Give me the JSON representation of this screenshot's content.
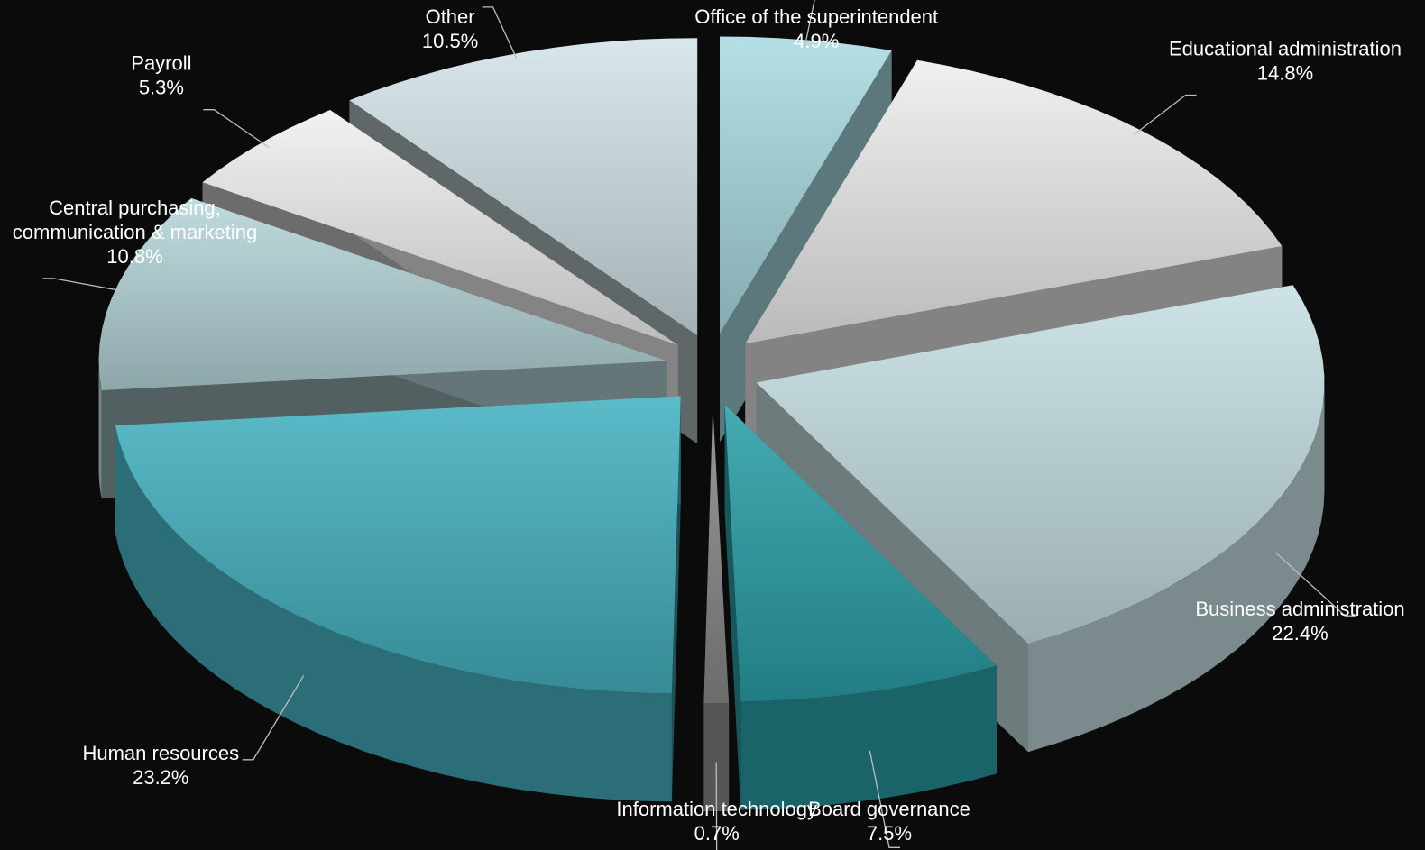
{
  "chart_data": {
    "type": "pie",
    "variant": "3d-exploded",
    "title": "",
    "unit": "%",
    "legend": "none",
    "slices": [
      {
        "label": "Office of the superintendent",
        "value": 4.9,
        "display": "4.9%",
        "color": "#a9dbe1"
      },
      {
        "label": "Educational administration",
        "value": 14.8,
        "display": "14.8%",
        "color": "#eeeeee"
      },
      {
        "label": "Business administration",
        "value": 22.4,
        "display": "22.4%",
        "color": "#c6dfe3"
      },
      {
        "label": "Board governance",
        "value": 7.5,
        "display": "7.5%",
        "color": "#2aa0a8"
      },
      {
        "label": "Information technology",
        "value": 0.7,
        "display": "0.7%",
        "color": "#8a8a8a"
      },
      {
        "label": "Human resources",
        "value": 23.2,
        "display": "23.2%",
        "color": "#45b2c0"
      },
      {
        "label": "Central purchasing, communication & marketing",
        "value": 10.8,
        "display": "10.8%",
        "color": "#b6d6da"
      },
      {
        "label": "Payroll",
        "value": 5.3,
        "display": "5.3%",
        "color": "#f0f0f0"
      },
      {
        "label": "Other",
        "value": 10.5,
        "display": "10.5%",
        "color": "#d3e4e8"
      }
    ]
  }
}
